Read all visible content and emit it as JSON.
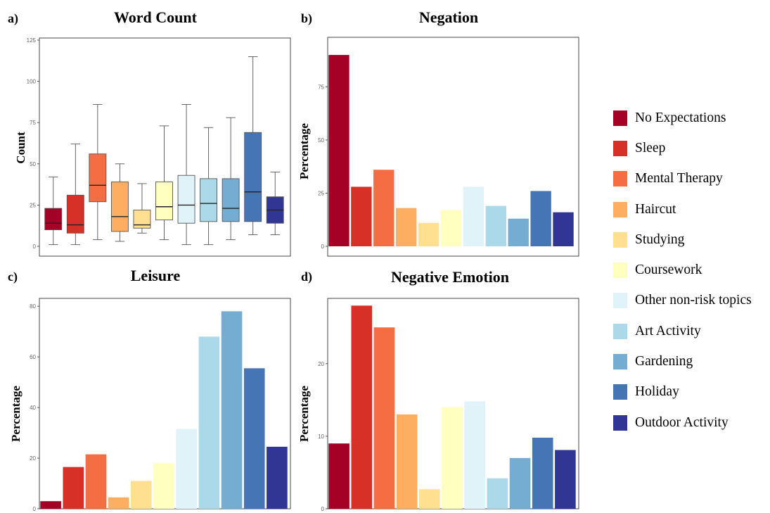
{
  "panels": {
    "a": {
      "letter": "a)",
      "title": "Word Count",
      "ylabel": "Count"
    },
    "b": {
      "letter": "b)",
      "title": "Negation",
      "ylabel": "Percentage"
    },
    "c": {
      "letter": "c)",
      "title": "Leisure",
      "ylabel": "Percentage"
    },
    "d": {
      "letter": "d)",
      "title": "Negative Emotion",
      "ylabel": "Percentage"
    }
  },
  "legend": [
    {
      "label": "No Expectations",
      "color": "#a50026"
    },
    {
      "label": "Sleep",
      "color": "#d73027"
    },
    {
      "label": "Mental Therapy",
      "color": "#f46d43"
    },
    {
      "label": "Haircut",
      "color": "#fdae61"
    },
    {
      "label": "Studying",
      "color": "#fee090"
    },
    {
      "label": "Coursework",
      "color": "#ffffbf"
    },
    {
      "label": "Other non-risk topics",
      "color": "#e0f3f8"
    },
    {
      "label": "Art Activity",
      "color": "#abd9e9"
    },
    {
      "label": "Gardening",
      "color": "#74add1"
    },
    {
      "label": "Holiday",
      "color": "#4575b4"
    },
    {
      "label": "Outdoor Activity",
      "color": "#313695"
    }
  ],
  "chart_data": [
    {
      "type": "box",
      "title": "Word Count",
      "ylabel": "Count",
      "ylim": [
        0,
        125
      ],
      "yticks": [
        0,
        25,
        50,
        75,
        100,
        125
      ],
      "categories": [
        "No Expectations",
        "Sleep",
        "Mental Therapy",
        "Haircut",
        "Studying",
        "Coursework",
        "Other non-risk topics",
        "Art Activity",
        "Gardening",
        "Holiday",
        "Outdoor Activity"
      ],
      "boxes": [
        {
          "min": 1,
          "q1": 10,
          "median": 14,
          "q3": 23,
          "max": 42
        },
        {
          "min": 1,
          "q1": 8,
          "median": 13,
          "q3": 31,
          "max": 62
        },
        {
          "min": 4,
          "q1": 27,
          "median": 37,
          "q3": 56,
          "max": 86
        },
        {
          "min": 3,
          "q1": 9,
          "median": 18,
          "q3": 39,
          "max": 50
        },
        {
          "min": 8,
          "q1": 11,
          "median": 13,
          "q3": 22,
          "max": 38
        },
        {
          "min": 4,
          "q1": 16,
          "median": 24,
          "q3": 39,
          "max": 73
        },
        {
          "min": 1,
          "q1": 14,
          "median": 25,
          "q3": 43,
          "max": 86
        },
        {
          "min": 1,
          "q1": 15,
          "median": 26,
          "q3": 41,
          "max": 72
        },
        {
          "min": 4,
          "q1": 15,
          "median": 23,
          "q3": 41,
          "max": 78
        },
        {
          "min": 7,
          "q1": 15,
          "median": 33,
          "q3": 69,
          "max": 115
        },
        {
          "min": 7,
          "q1": 14,
          "median": 22,
          "q3": 30,
          "max": 45
        }
      ]
    },
    {
      "type": "bar",
      "title": "Negation",
      "ylabel": "Percentage",
      "ylim": [
        0,
        95
      ],
      "yticks": [
        0,
        25,
        50,
        75
      ],
      "categories": [
        "No Expectations",
        "Sleep",
        "Mental Therapy",
        "Haircut",
        "Studying",
        "Coursework",
        "Other non-risk topics",
        "Art Activity",
        "Gardening",
        "Holiday",
        "Outdoor Activity"
      ],
      "values": [
        90,
        28,
        36,
        18,
        11,
        17,
        28,
        19,
        13,
        26,
        16
      ]
    },
    {
      "type": "bar",
      "title": "Leisure",
      "ylabel": "Percentage",
      "ylim": [
        0,
        82
      ],
      "yticks": [
        0,
        20,
        40,
        60,
        80
      ],
      "categories": [
        "No Expectations",
        "Sleep",
        "Mental Therapy",
        "Haircut",
        "Studying",
        "Coursework",
        "Other non-risk topics",
        "Art Activity",
        "Gardening",
        "Holiday",
        "Outdoor Activity"
      ],
      "values": [
        3,
        16.5,
        21.5,
        4.5,
        11,
        18,
        31.5,
        68,
        78,
        55.5,
        24.5
      ]
    },
    {
      "type": "bar",
      "title": "Negative Emotion",
      "ylabel": "Percentage",
      "ylim": [
        0,
        29
      ],
      "yticks": [
        0,
        10,
        20
      ],
      "categories": [
        "No Expectations",
        "Sleep",
        "Mental Therapy",
        "Haircut",
        "Studying",
        "Coursework",
        "Other non-risk topics",
        "Art Activity",
        "Gardening",
        "Holiday",
        "Outdoor Activity"
      ],
      "values": [
        9,
        28,
        25,
        13,
        2.7,
        14,
        14.8,
        4.2,
        7,
        9.8,
        8.1
      ]
    }
  ]
}
